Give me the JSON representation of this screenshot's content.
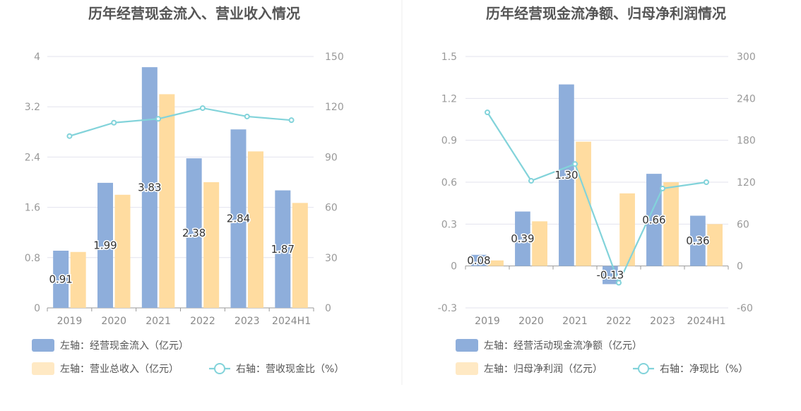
{
  "colors": {
    "bar_primary": "#8eaedb",
    "bar_secondary": "#ffdca0",
    "line": "#82d3da",
    "legend_secondary": "#ffe9c4"
  },
  "chart_data": [
    {
      "type": "bar",
      "title": "历年经营现金流入、营业收入情况",
      "categories": [
        "2019",
        "2020",
        "2021",
        "2022",
        "2023",
        "2024H1"
      ],
      "left_axis": {
        "ticks": [
          "0",
          "0.8",
          "1.6",
          "2.4",
          "3.2",
          "4"
        ],
        "ylim": [
          0,
          4
        ]
      },
      "right_axis": {
        "ticks": [
          "0",
          "30",
          "60",
          "90",
          "120",
          "150"
        ],
        "ylim": [
          0,
          150
        ]
      },
      "series": [
        {
          "name": "左轴：经营现金流入（亿元）",
          "type": "bar",
          "axis": "left",
          "color": "#8eaedb",
          "values": [
            0.91,
            1.99,
            3.83,
            2.38,
            2.84,
            1.87
          ],
          "labels": [
            "0.91",
            "1.99",
            "3.83",
            "2.38",
            "2.84",
            "1.87"
          ]
        },
        {
          "name": "左轴：营业总收入（亿元）",
          "type": "bar",
          "axis": "left",
          "color": "#ffdca0",
          "values": [
            0.89,
            1.8,
            3.4,
            2.0,
            2.49,
            1.67
          ]
        },
        {
          "name": "右轴：营收现金比（%）",
          "type": "line",
          "axis": "right",
          "color": "#82d3da",
          "values": [
            102.5,
            110.5,
            112.8,
            119.2,
            114.2,
            112.0
          ]
        }
      ]
    },
    {
      "type": "bar",
      "title": "历年经营现金流净额、归母净利润情况",
      "categories": [
        "2019",
        "2020",
        "2021",
        "2022",
        "2023",
        "2024H1"
      ],
      "left_axis": {
        "ticks": [
          "-0.3",
          "0",
          "0.3",
          "0.6",
          "0.9",
          "1.2",
          "1.5"
        ],
        "ylim": [
          -0.3,
          1.5
        ]
      },
      "right_axis": {
        "ticks": [
          "-60",
          "0",
          "60",
          "120",
          "180",
          "240",
          "300"
        ],
        "ylim": [
          -60,
          300
        ]
      },
      "series": [
        {
          "name": "左轴：经营活动现金流净额（亿元）",
          "type": "bar",
          "axis": "left",
          "color": "#8eaedb",
          "values": [
            0.08,
            0.39,
            1.3,
            -0.13,
            0.66,
            0.36
          ],
          "labels": [
            "0.08",
            "0.39",
            "1.30",
            "-0.13",
            "0.66",
            "0.36"
          ]
        },
        {
          "name": "左轴：归母净利润（亿元）",
          "type": "bar",
          "axis": "left",
          "color": "#ffdca0",
          "values": [
            0.04,
            0.32,
            0.89,
            0.52,
            0.6,
            0.3
          ]
        },
        {
          "name": "右轴：净现比（%）",
          "type": "line",
          "axis": "right",
          "color": "#82d3da",
          "values": [
            220,
            122,
            146,
            -24,
            111,
            120
          ]
        }
      ]
    }
  ]
}
